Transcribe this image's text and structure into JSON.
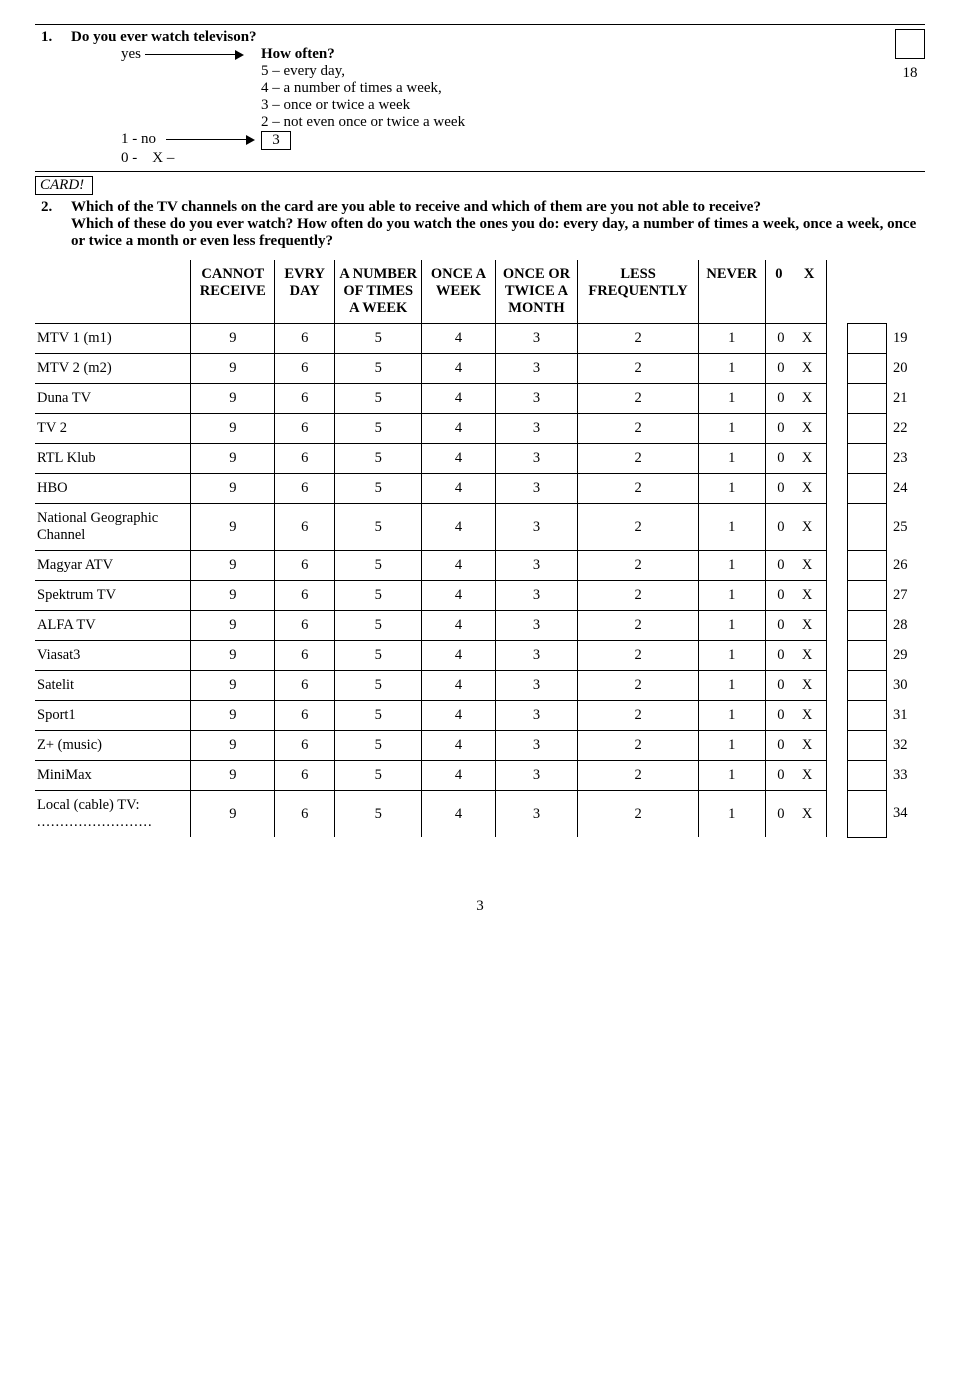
{
  "q1": {
    "num": "1.",
    "title": "Do you ever watch televison?",
    "yes": "yes",
    "how_often": "How often?",
    "opt5": "5 – every day,",
    "opt4": "4 – a number of times a week,",
    "opt3": "3 – once or twice a week",
    "opt2": "2 – not even once or twice a week",
    "no": "1 - no",
    "no_target": "3",
    "zero": "0 -    X –",
    "code18": "18"
  },
  "card": "CARD!",
  "q2": {
    "num": "2.",
    "line1": "Which of the TV channels on the card are you able to receive and which of them are you not able to receive?",
    "line2": "Which of these do you ever watch? How often do you watch the ones you do: every day, a number of times a week, once a week, once or twice a month or even less frequently?"
  },
  "headers": {
    "h0": "",
    "h1": "CANNOT RECEIVE",
    "h2": "EVRY DAY",
    "h3": "A NUMBER OF TIMES A WEEK",
    "h4": "ONCE A WEEK",
    "h5": "ONCE OR TWICE A MONTH",
    "h6": "LESS FREQUENTLY",
    "h7": "NEVER",
    "h8_a": "0",
    "h8_b": "X"
  },
  "cells": [
    "9",
    "6",
    "5",
    "4",
    "3",
    "2",
    "1",
    "0",
    "X"
  ],
  "rows": [
    {
      "label": "MTV 1 (m1)",
      "num": "19"
    },
    {
      "label": "MTV 2 (m2)",
      "num": "20"
    },
    {
      "label": "Duna TV",
      "num": "21"
    },
    {
      "label": "TV 2",
      "num": "22"
    },
    {
      "label": "RTL Klub",
      "num": "23"
    },
    {
      "label": "HBO",
      "num": "24"
    },
    {
      "label": "National Geographic Channel",
      "num": "25"
    },
    {
      "label": "Magyar ATV",
      "num": "26"
    },
    {
      "label": "Spektrum TV",
      "num": "27"
    },
    {
      "label": "ALFA TV",
      "num": "28"
    },
    {
      "label": "Viasat3",
      "num": "29"
    },
    {
      "label": "Satelit",
      "num": "30"
    },
    {
      "label": "Sport1",
      "num": "31"
    },
    {
      "label": "Z+ (music)",
      "num": "32"
    },
    {
      "label": "MiniMax",
      "num": "33"
    },
    {
      "label": "Local (cable) TV:",
      "dots": ".........................",
      "num": "34"
    }
  ],
  "page": "3"
}
